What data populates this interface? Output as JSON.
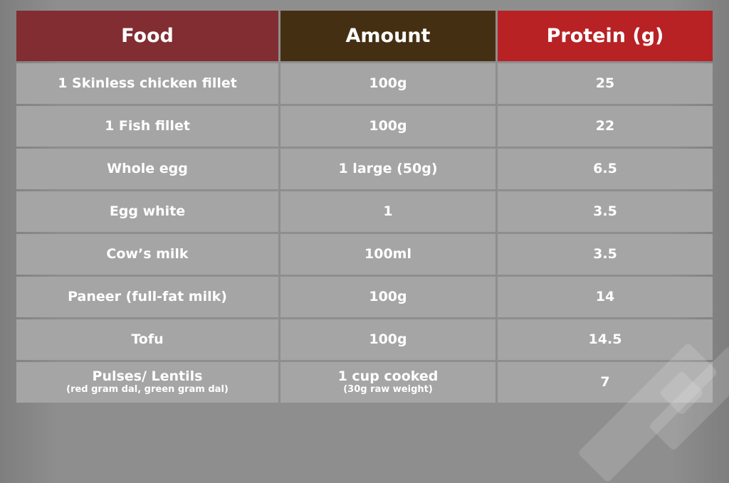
{
  "header": {
    "columns": [
      "Food",
      "Amount",
      "Protein (g)"
    ],
    "colors": [
      "#812d32",
      "#452f13",
      "#b82225"
    ]
  },
  "rows": [
    {
      "food": "1 Skinless chicken fillet",
      "amount": "100g",
      "protein": "25"
    },
    {
      "food": "1 Fish fillet",
      "amount": "100g",
      "protein": "22"
    },
    {
      "food": "Whole egg",
      "amount": "1 large (50g)",
      "protein": "6.5"
    },
    {
      "food": "Egg white",
      "amount": "1",
      "protein": "3.5"
    },
    {
      "food": "Cow’s milk",
      "amount": "100ml",
      "protein": "3.5"
    },
    {
      "food": "Paneer (full-fat milk)",
      "amount": "100g",
      "protein": "14"
    },
    {
      "food": "Tofu",
      "amount": "100g",
      "protein": "14.5"
    },
    {
      "food": "Pulses/ Lentils",
      "food_note": "(red gram dal, green gram dal)",
      "amount": "1 cup cooked",
      "amount_note": "(30g raw weight)",
      "protein": "7"
    }
  ]
}
